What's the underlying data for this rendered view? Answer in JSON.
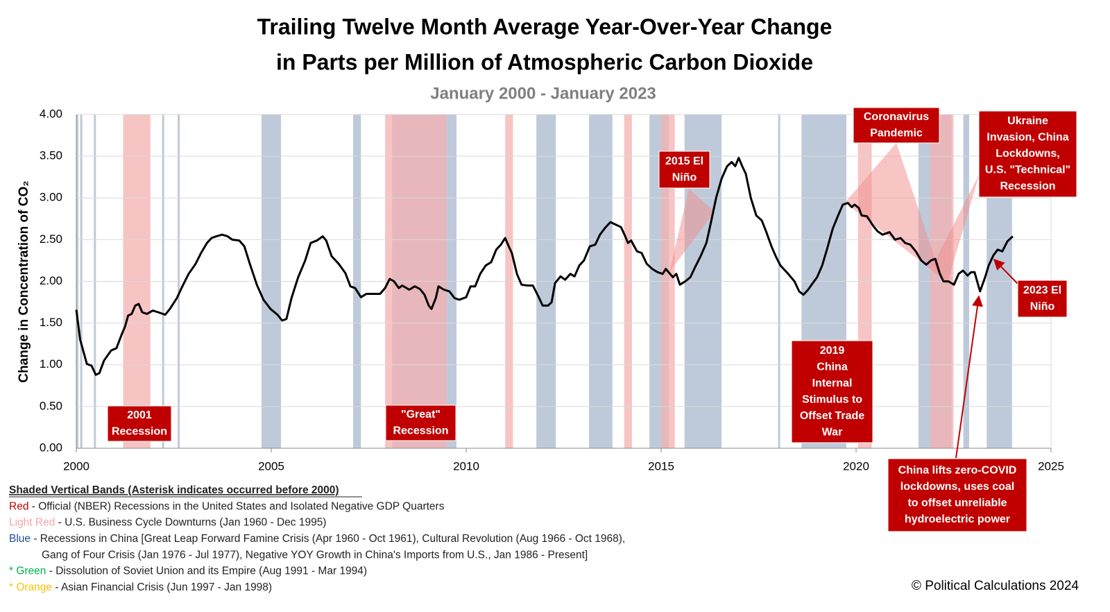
{
  "chart_data": {
    "type": "line",
    "title": [
      "Trailing Twelve Month Average Year-Over-Year Change",
      "in Parts per Million of Atmospheric Carbon Dioxide"
    ],
    "subtitle": "January 2000 - January 2023",
    "y_label": "Change in Concentration of CO₂",
    "xlim": [
      2000,
      2025
    ],
    "xticks": [
      2000,
      2005,
      2010,
      2015,
      2020,
      2025
    ],
    "ylim": [
      0,
      4
    ],
    "yticks": [
      {
        "value": 0,
        "label": "0.00"
      },
      {
        "value": 0.5,
        "label": "0.50"
      },
      {
        "value": 1,
        "label": "1.00"
      },
      {
        "value": 1.5,
        "label": "1.50"
      },
      {
        "value": 2,
        "label": "2.00"
      },
      {
        "value": 2.5,
        "label": "2.50"
      },
      {
        "value": 3,
        "label": "3.00"
      },
      {
        "value": 3.5,
        "label": "3.50"
      },
      {
        "value": 4,
        "label": "4.00"
      }
    ],
    "grid": true,
    "color": "#000000",
    "x": [
      2000.0,
      2000.1,
      2000.27,
      2000.39,
      2000.5,
      2000.59,
      2000.71,
      2000.89,
      2001.03,
      2001.16,
      2001.25,
      2001.33,
      2001.42,
      2001.51,
      2001.6,
      2001.69,
      2001.81,
      2001.96,
      2002.1,
      2002.28,
      2002.4,
      2002.58,
      2002.7,
      2002.88,
      2003.06,
      2003.2,
      2003.35,
      2003.47,
      2003.59,
      2003.74,
      2003.88,
      2004.0,
      2004.18,
      2004.31,
      2004.45,
      2004.63,
      2004.8,
      2004.98,
      2005.16,
      2005.28,
      2005.39,
      2005.52,
      2005.69,
      2005.87,
      2006.01,
      2006.17,
      2006.32,
      2006.41,
      2006.55,
      2006.73,
      2006.9,
      2007.03,
      2007.15,
      2007.3,
      2007.44,
      2007.62,
      2007.79,
      2007.92,
      2008.04,
      2008.15,
      2008.27,
      2008.36,
      2008.54,
      2008.68,
      2008.81,
      2008.93,
      2009.04,
      2009.11,
      2009.22,
      2009.29,
      2009.43,
      2009.57,
      2009.7,
      2009.82,
      2010.0,
      2010.11,
      2010.23,
      2010.36,
      2010.5,
      2010.64,
      2010.77,
      2010.89,
      2011.0,
      2011.09,
      2011.17,
      2011.3,
      2011.42,
      2011.57,
      2011.71,
      2011.83,
      2011.96,
      2012.1,
      2012.19,
      2012.28,
      2012.42,
      2012.54,
      2012.67,
      2012.78,
      2012.9,
      2013.02,
      2013.17,
      2013.31,
      2013.43,
      2013.56,
      2013.7,
      2013.79,
      2013.97,
      2014.06,
      2014.15,
      2014.23,
      2014.38,
      2014.5,
      2014.63,
      2014.77,
      2014.91,
      2015.04,
      2015.12,
      2015.21,
      2015.3,
      2015.39,
      2015.48,
      2015.62,
      2015.75,
      2015.87,
      2016.01,
      2016.16,
      2016.28,
      2016.41,
      2016.55,
      2016.69,
      2016.81,
      2016.9,
      2016.99,
      2017.08,
      2017.17,
      2017.3,
      2017.44,
      2017.58,
      2017.7,
      2017.83,
      2017.94,
      2018.06,
      2018.24,
      2018.42,
      2018.54,
      2018.65,
      2018.77,
      2018.86,
      2019.0,
      2019.13,
      2019.25,
      2019.4,
      2019.54,
      2019.66,
      2019.79,
      2019.89,
      2019.96,
      2020.07,
      2020.14,
      2020.28,
      2020.43,
      2020.55,
      2020.68,
      2020.86,
      2021.0,
      2021.14,
      2021.26,
      2021.39,
      2021.53,
      2021.67,
      2021.8,
      2021.92,
      2022.03,
      2022.15,
      2022.24,
      2022.37,
      2022.51,
      2022.63,
      2022.74,
      2022.86,
      2022.95,
      2023.04,
      2023.13,
      2023.18,
      2023.31,
      2023.4,
      2023.52,
      2023.63,
      2023.75,
      2023.88,
      2024.02
    ],
    "values": [
      1.66,
      1.3,
      1.01,
      0.99,
      0.88,
      0.9,
      1.05,
      1.17,
      1.2,
      1.36,
      1.46,
      1.59,
      1.61,
      1.71,
      1.73,
      1.63,
      1.61,
      1.65,
      1.63,
      1.6,
      1.67,
      1.8,
      1.92,
      2.09,
      2.21,
      2.34,
      2.46,
      2.52,
      2.54,
      2.56,
      2.54,
      2.5,
      2.49,
      2.42,
      2.21,
      1.96,
      1.78,
      1.67,
      1.6,
      1.53,
      1.55,
      1.8,
      2.05,
      2.25,
      2.46,
      2.49,
      2.54,
      2.49,
      2.3,
      2.21,
      2.1,
      1.94,
      1.92,
      1.81,
      1.85,
      1.85,
      1.85,
      1.92,
      2.03,
      2.0,
      1.92,
      1.95,
      1.9,
      1.94,
      1.91,
      1.84,
      1.71,
      1.67,
      1.8,
      1.94,
      1.9,
      1.88,
      1.8,
      1.78,
      1.81,
      1.94,
      1.94,
      2.09,
      2.19,
      2.23,
      2.38,
      2.44,
      2.52,
      2.42,
      2.34,
      2.09,
      1.96,
      1.95,
      1.95,
      1.84,
      1.71,
      1.71,
      1.75,
      1.98,
      2.06,
      2.02,
      2.09,
      2.06,
      2.19,
      2.25,
      2.42,
      2.44,
      2.56,
      2.64,
      2.71,
      2.69,
      2.65,
      2.56,
      2.46,
      2.49,
      2.36,
      2.34,
      2.21,
      2.15,
      2.11,
      2.09,
      2.15,
      2.1,
      2.05,
      2.09,
      1.96,
      2.0,
      2.05,
      2.17,
      2.3,
      2.46,
      2.71,
      3.0,
      3.23,
      3.38,
      3.43,
      3.38,
      3.48,
      3.38,
      3.29,
      3.0,
      2.79,
      2.73,
      2.59,
      2.42,
      2.3,
      2.19,
      2.1,
      2.0,
      1.88,
      1.84,
      1.9,
      1.96,
      2.05,
      2.19,
      2.38,
      2.63,
      2.79,
      2.92,
      2.94,
      2.89,
      2.92,
      2.88,
      2.79,
      2.78,
      2.67,
      2.6,
      2.56,
      2.59,
      2.5,
      2.52,
      2.46,
      2.44,
      2.36,
      2.25,
      2.2,
      2.25,
      2.27,
      2.09,
      2.0,
      2.0,
      1.96,
      2.09,
      2.13,
      2.07,
      2.11,
      2.11,
      1.96,
      1.88,
      2.05,
      2.19,
      2.31,
      2.38,
      2.36,
      2.48,
      2.54
    ],
    "blue_band_color": "#a8b8cc",
    "red_band_color": "#f4b0b0",
    "blue_bands": [
      [
        2000.0,
        2000.05
      ],
      [
        2000.1,
        2000.15
      ],
      [
        2000.45,
        2000.5
      ],
      [
        2002.2,
        2002.25
      ],
      [
        2002.6,
        2002.65
      ],
      [
        2004.75,
        2005.25
      ],
      [
        2007.1,
        2007.3
      ],
      [
        2008.1,
        2009.75
      ],
      [
        2011.8,
        2012.3
      ],
      [
        2013.15,
        2013.75
      ],
      [
        2014.7,
        2015.2
      ],
      [
        2015.6,
        2016.55
      ],
      [
        2018.0,
        2018.05
      ],
      [
        2018.6,
        2019.75
      ],
      [
        2021.6,
        2022.45
      ],
      [
        2022.75,
        2022.9
      ],
      [
        2023.35,
        2024.0
      ]
    ],
    "red_bands": [
      [
        2001.2,
        2001.9
      ],
      [
        2007.92,
        2009.5
      ],
      [
        2011.0,
        2011.2
      ],
      [
        2014.05,
        2014.25
      ],
      [
        2015.0,
        2015.35
      ],
      [
        2020.05,
        2020.4
      ],
      [
        2021.9,
        2022.5
      ]
    ],
    "annotations": [
      {
        "lines": [
          "2001",
          "Recession"
        ]
      },
      {
        "lines": [
          "\"Great\"",
          "Recession"
        ]
      },
      {
        "lines": [
          "2015 El",
          "Niño"
        ]
      },
      {
        "lines": [
          "2019",
          "China",
          "Internal",
          "Stimulus to",
          "Offset Trade",
          "War"
        ]
      },
      {
        "lines": [
          "Coronavirus",
          "Pandemic"
        ]
      },
      {
        "lines": [
          "Ukraine",
          "Invasion, China",
          "Lockdowns,",
          "U.S. \"Technical\"",
          "Recession"
        ]
      },
      {
        "lines": [
          "China lifts zero-COVID",
          "lockdowns, uses coal",
          "to offset unreliable",
          "hydroelectric power"
        ]
      },
      {
        "lines": [
          "2023 El",
          "Niño"
        ]
      }
    ],
    "notes": {
      "heading": "Shaded Vertical Bands (Asterisk indicates occurred before 2000)",
      "items": [
        {
          "key": "Red",
          "color": "#c00000",
          "lines": [
            " - Official (NBER) Recessions in the United States and Isolated Negative GDP Quarters"
          ]
        },
        {
          "key": "Light Red",
          "color": "#f4a6a6",
          "lines": [
            " - U.S. Business Cycle Downturns (Jan 1960 - Dec 1995)"
          ]
        },
        {
          "key": "Blue",
          "color": "#1f4e99",
          "lines": [
            " - Recessions in China [Great Leap Forward Famine Crisis (Apr 1960 - Oct 1961), Cultural Revolution (Aug 1966 - Oct 1968),",
            "Gang of Four Crisis (Jan 1976 -  Jul 1977), Negative  YOY Growth in China's Imports from U.S., Jan 1986 - Present]"
          ]
        },
        {
          "key": "* Green",
          "color": "#00b050",
          "lines": [
            " - Dissolution of Soviet Union and its Empire (Aug 1991 - Mar 1994)"
          ]
        },
        {
          "key": "* Orange",
          "color": "#ffc000",
          "lines": [
            " - Asian Financial Crisis (Jun 1997 - Jan 1998)"
          ]
        }
      ]
    },
    "credit": "© Political Calculations 2024"
  }
}
